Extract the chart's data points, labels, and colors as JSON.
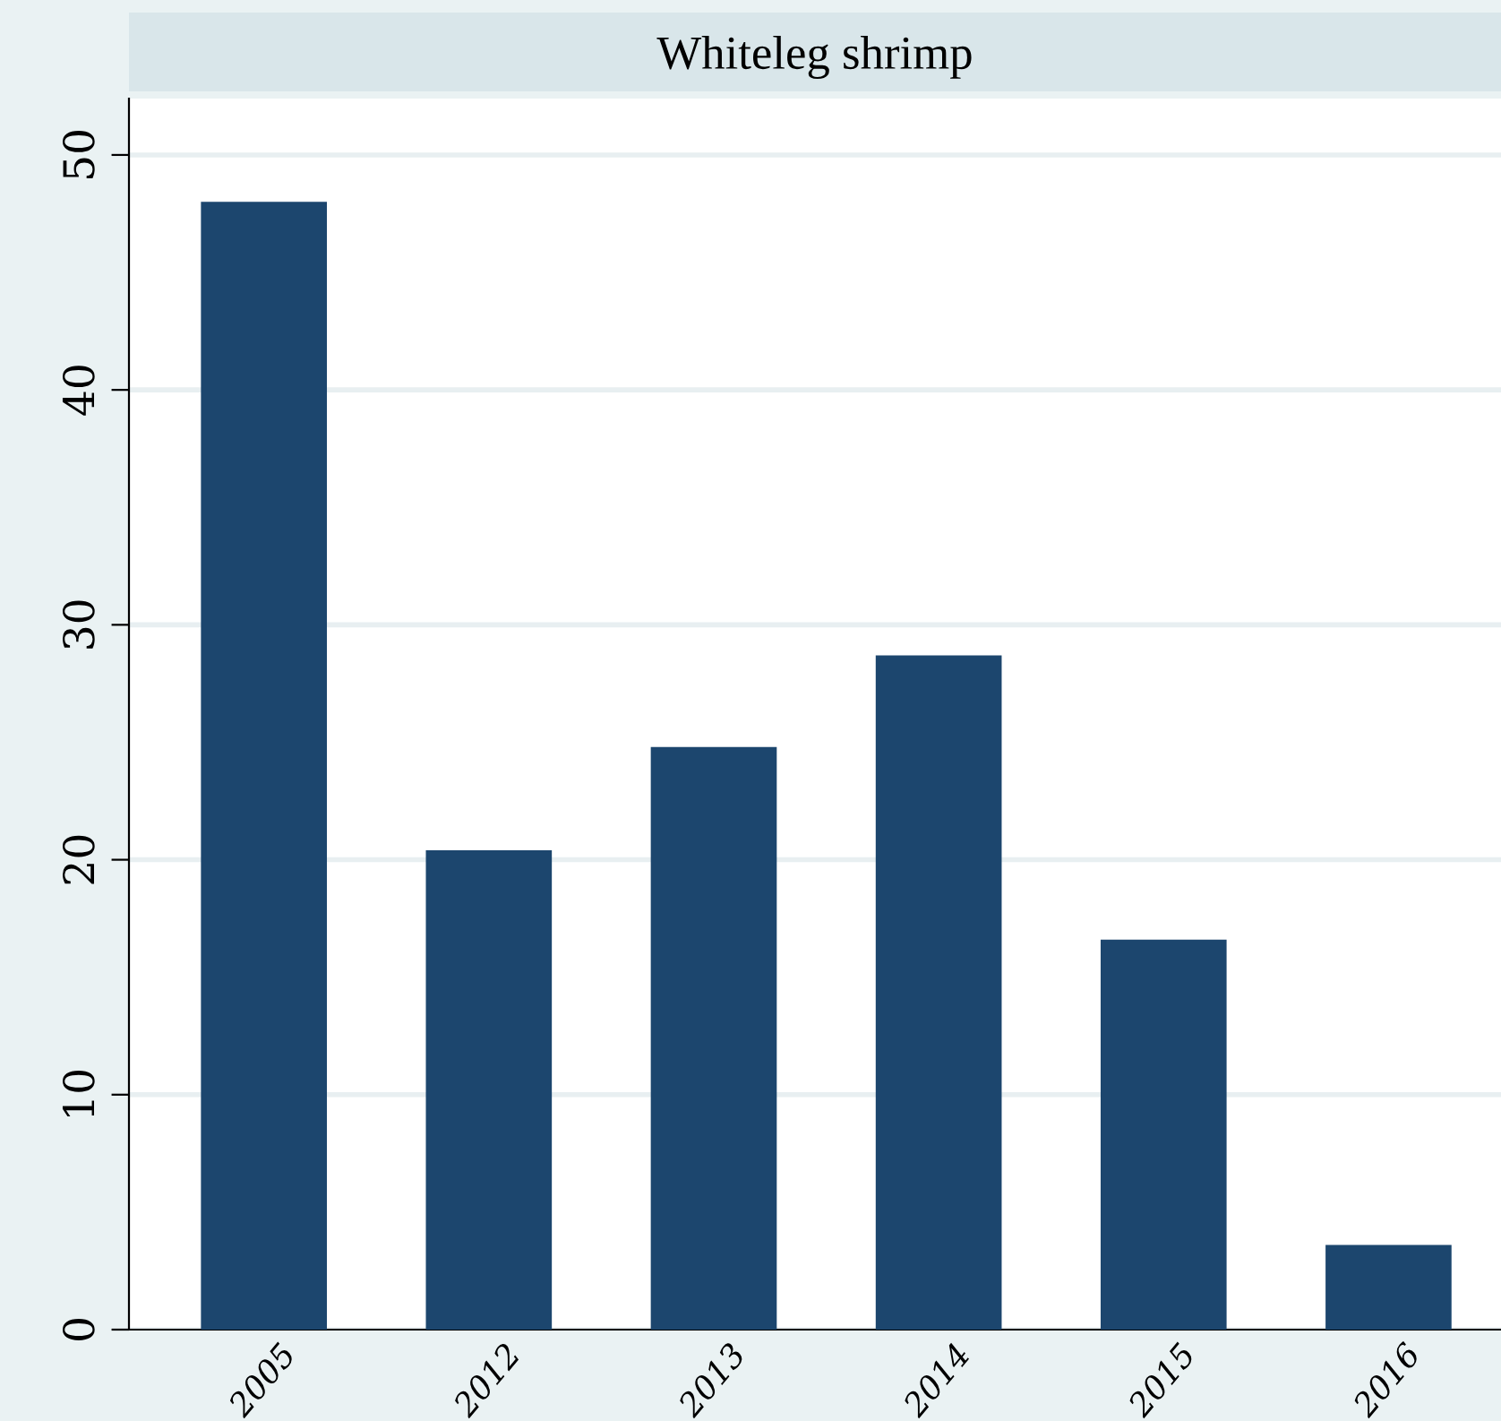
{
  "chart_data": {
    "type": "bar",
    "title": "Whiteleg shrimp",
    "categories": [
      "2005",
      "2012",
      "2013",
      "2014",
      "2015",
      "2016"
    ],
    "values": [
      48,
      20.4,
      24.8,
      28.7,
      16.6,
      3.6
    ],
    "color": "#1c466e",
    "ylim": [
      0,
      52.4
    ],
    "yticks": [
      0,
      10,
      20,
      30,
      40,
      50
    ],
    "grid": "y"
  }
}
